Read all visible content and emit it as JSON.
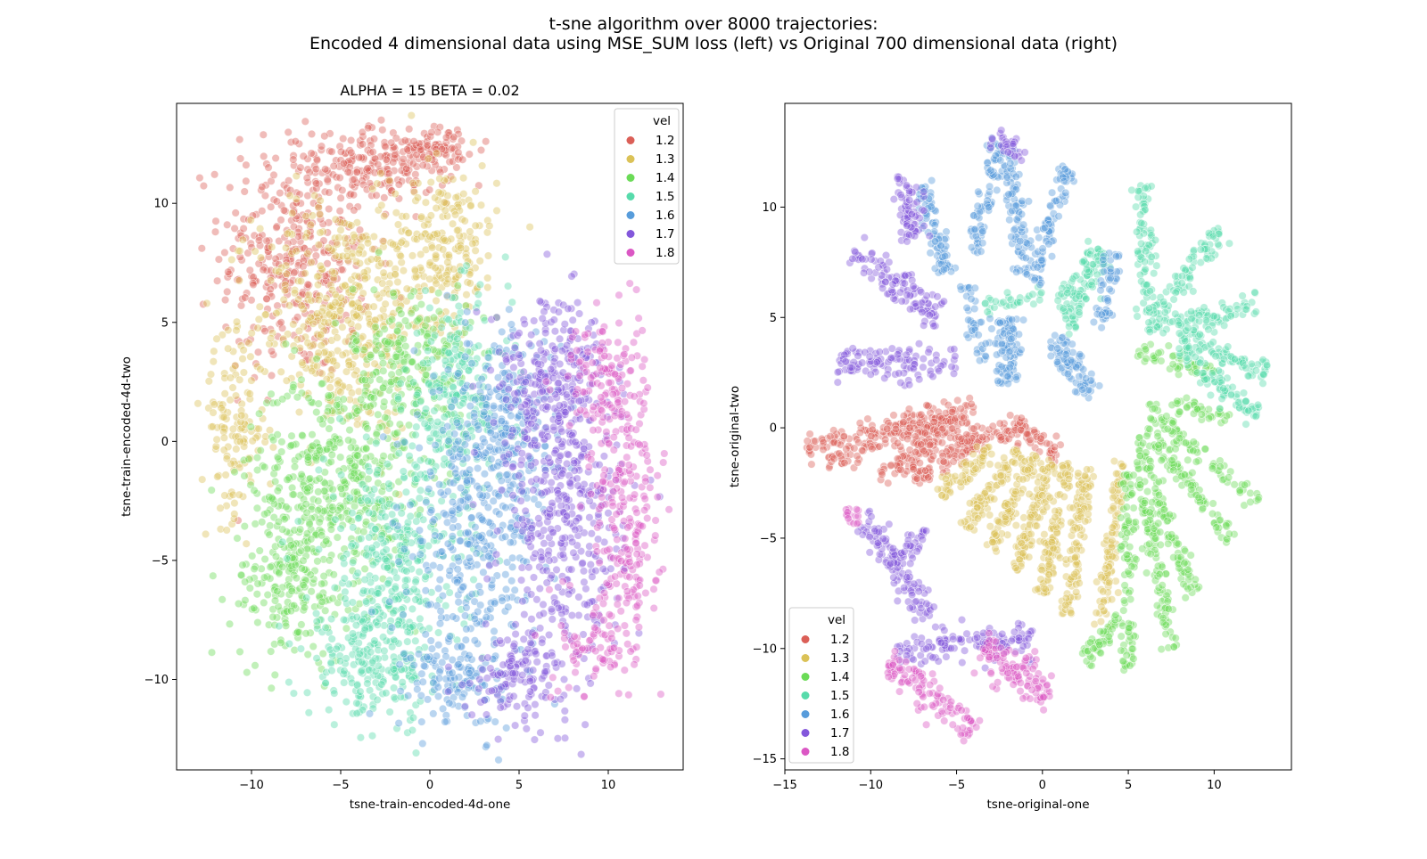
{
  "figure": {
    "title_line1": "t-sne algorithm over 8000 trajectories:",
    "title_line2": "Encoded 4 dimensional data using MSE_SUM loss (left) vs Original 700 dimensional data (right)"
  },
  "colors": {
    "1.2": "#db5f57",
    "1.3": "#dbc257",
    "1.4": "#6bdb57",
    "1.5": "#57dbab",
    "1.6": "#579cdb",
    "1.7": "#8357db",
    "1.8": "#db57c4"
  },
  "chart_data": [
    {
      "type": "scatter",
      "title": "ALPHA = 15  BETA = 0.02",
      "xlabel": "tsne-train-encoded-4d-one",
      "ylabel": "tsne-train-encoded-4d-two",
      "xlim": [
        -14.2,
        14.2
      ],
      "ylim": [
        -13.8,
        14.2
      ],
      "xticks": [
        -10,
        -5,
        0,
        5,
        10
      ],
      "yticks": [
        -10,
        -5,
        0,
        5,
        10
      ],
      "xtick_labels": [
        "−10",
        "−5",
        "0",
        "5",
        "10"
      ],
      "ytick_labels": [
        "−10",
        "−5",
        "0",
        "5",
        "10"
      ],
      "legend": {
        "title": "vel",
        "placement": "upper right",
        "entries": [
          "1.2",
          "1.3",
          "1.4",
          "1.5",
          "1.6",
          "1.7",
          "1.8"
        ]
      },
      "grid": false,
      "point_alpha": 0.42,
      "series": [
        {
          "name": "1.2",
          "clusters": [
            {
              "cx": -7.5,
              "cy": 8.0,
              "sx": 2.8,
              "sy": 3.6,
              "n": 380
            },
            {
              "cx": -2.5,
              "cy": 11.6,
              "sx": 2.5,
              "sy": 1.0,
              "n": 180
            },
            {
              "cx": 0.4,
              "cy": 12.3,
              "sx": 1.1,
              "sy": 0.6,
              "n": 70
            }
          ]
        },
        {
          "name": "1.3",
          "clusters": [
            {
              "cx": -5.0,
              "cy": 5.2,
              "sx": 3.2,
              "sy": 3.3,
              "n": 440
            },
            {
              "cx": 0.8,
              "cy": 8.3,
              "sx": 2.0,
              "sy": 2.2,
              "n": 220
            },
            {
              "cx": -11.0,
              "cy": 0.5,
              "sx": 1.2,
              "sy": 2.4,
              "n": 120
            }
          ]
        },
        {
          "name": "1.4",
          "clusters": [
            {
              "cx": -5.5,
              "cy": -1.5,
              "sx": 3.0,
              "sy": 3.0,
              "n": 420
            },
            {
              "cx": -1.0,
              "cy": 3.2,
              "sx": 2.2,
              "sy": 2.3,
              "n": 220
            },
            {
              "cx": -7.8,
              "cy": -6.0,
              "sx": 2.2,
              "sy": 2.2,
              "n": 200
            }
          ]
        },
        {
          "name": "1.5",
          "clusters": [
            {
              "cx": -2.0,
              "cy": -5.5,
              "sx": 2.6,
              "sy": 3.6,
              "n": 380
            },
            {
              "cx": 1.5,
              "cy": 1.8,
              "sx": 2.0,
              "sy": 2.8,
              "n": 230
            },
            {
              "cx": -3.5,
              "cy": -9.5,
              "sx": 2.2,
              "sy": 1.4,
              "n": 150
            }
          ]
        },
        {
          "name": "1.6",
          "clusters": [
            {
              "cx": 2.5,
              "cy": -4.0,
              "sx": 2.3,
              "sy": 4.5,
              "n": 380
            },
            {
              "cx": 4.5,
              "cy": 1.0,
              "sx": 1.8,
              "sy": 2.5,
              "n": 190
            },
            {
              "cx": 1.5,
              "cy": -10.0,
              "sx": 1.8,
              "sy": 1.3,
              "n": 110
            }
          ]
        },
        {
          "name": "1.7",
          "clusters": [
            {
              "cx": 7.5,
              "cy": -3.5,
              "sx": 2.2,
              "sy": 4.5,
              "n": 420
            },
            {
              "cx": 6.8,
              "cy": 2.8,
              "sx": 2.2,
              "sy": 2.2,
              "n": 220
            },
            {
              "cx": 5.0,
              "cy": -9.8,
              "sx": 1.8,
              "sy": 1.3,
              "n": 120
            }
          ]
        },
        {
          "name": "1.8",
          "clusters": [
            {
              "cx": 11.0,
              "cy": -3.5,
              "sx": 1.3,
              "sy": 3.5,
              "n": 200
            },
            {
              "cx": 9.8,
              "cy": 2.5,
              "sx": 1.4,
              "sy": 2.0,
              "n": 140
            },
            {
              "cx": 9.5,
              "cy": -8.5,
              "sx": 1.5,
              "sy": 1.5,
              "n": 80
            }
          ]
        }
      ]
    },
    {
      "type": "scatter",
      "title": "",
      "xlabel": "tsne-original-one",
      "ylabel": "tsne-original-two",
      "xlim": [
        -15.0,
        14.5
      ],
      "ylim": [
        -15.5,
        14.7
      ],
      "xticks": [
        -15,
        -10,
        -5,
        0,
        5,
        10
      ],
      "yticks": [
        -15,
        -10,
        -5,
        0,
        5,
        10
      ],
      "xtick_labels": [
        "−15",
        "−10",
        "−5",
        "0",
        "5",
        "10"
      ],
      "ytick_labels": [
        "−15",
        "−10",
        "−5",
        "0",
        "5",
        "10"
      ],
      "legend": {
        "title": "vel",
        "placement": "lower left",
        "entries": [
          "1.2",
          "1.3",
          "1.4",
          "1.5",
          "1.6",
          "1.7",
          "1.8"
        ]
      },
      "grid": false,
      "point_alpha": 0.42,
      "series": [
        {
          "name": "1.2",
          "strands": [
            {
              "x0": -13.8,
              "y0": -0.8,
              "x1": -4.0,
              "y1": 1.0,
              "w": 0.35,
              "n": 120
            },
            {
              "x0": -12.5,
              "y0": -1.5,
              "x1": -5.0,
              "y1": 0.5,
              "w": 0.35,
              "n": 110
            },
            {
              "x0": -9.5,
              "y0": -2.3,
              "x1": -4.5,
              "y1": 0.5,
              "w": 0.35,
              "n": 90
            },
            {
              "x0": -7.5,
              "y0": -2.3,
              "x1": -3.5,
              "y1": -0.5,
              "w": 0.35,
              "n": 80
            },
            {
              "x0": -5.0,
              "y0": -0.8,
              "x1": -1.0,
              "y1": 0.1,
              "w": 0.35,
              "n": 60
            },
            {
              "x0": -1.5,
              "y0": 0.1,
              "x1": 1.0,
              "y1": -1.3,
              "w": 0.3,
              "n": 50
            }
          ]
        },
        {
          "name": "1.3",
          "strands": [
            {
              "x0": -6.0,
              "y0": -3.0,
              "x1": -3.0,
              "y1": -1.0,
              "w": 0.3,
              "n": 60
            },
            {
              "x0": -4.5,
              "y0": -4.5,
              "x1": -1.5,
              "y1": -1.0,
              "w": 0.3,
              "n": 80
            },
            {
              "x0": -3.0,
              "y0": -5.5,
              "x1": -0.5,
              "y1": -1.2,
              "w": 0.3,
              "n": 90
            },
            {
              "x0": -1.5,
              "y0": -6.5,
              "x1": 0.5,
              "y1": -1.5,
              "w": 0.3,
              "n": 100
            },
            {
              "x0": 0.0,
              "y0": -7.5,
              "x1": 1.5,
              "y1": -1.6,
              "w": 0.3,
              "n": 110
            },
            {
              "x0": 1.5,
              "y0": -8.5,
              "x1": 2.5,
              "y1": -1.8,
              "w": 0.3,
              "n": 110
            },
            {
              "x0": 3.5,
              "y0": -9.0,
              "x1": 4.5,
              "y1": -1.5,
              "w": 0.3,
              "n": 100
            }
          ]
        },
        {
          "name": "1.4",
          "strands": [
            {
              "x0": 2.5,
              "y0": -10.5,
              "x1": 4.5,
              "y1": -8.5,
              "w": 0.3,
              "n": 50
            },
            {
              "x0": 5.0,
              "y0": -11.0,
              "x1": 5.0,
              "y1": -2.0,
              "w": 0.3,
              "n": 100
            },
            {
              "x0": 7.5,
              "y0": -10.0,
              "x1": 5.5,
              "y1": -1.5,
              "w": 0.3,
              "n": 110
            },
            {
              "x0": 9.0,
              "y0": -8.0,
              "x1": 5.5,
              "y1": -0.5,
              "w": 0.3,
              "n": 100
            },
            {
              "x0": 11.0,
              "y0": -5.0,
              "x1": 6.0,
              "y1": 0.0,
              "w": 0.3,
              "n": 90
            },
            {
              "x0": 12.5,
              "y0": -3.5,
              "x1": 6.0,
              "y1": 1.0,
              "w": 0.3,
              "n": 80
            },
            {
              "x0": 10.0,
              "y0": 2.5,
              "x1": 5.5,
              "y1": 3.5,
              "w": 0.3,
              "n": 50
            },
            {
              "x0": 11.0,
              "y0": 0.5,
              "x1": 7.5,
              "y1": 1.0,
              "w": 0.3,
              "n": 40
            }
          ]
        },
        {
          "name": "1.5",
          "strands": [
            {
              "x0": 12.5,
              "y0": 0.5,
              "x1": 8.0,
              "y1": 3.5,
              "w": 0.35,
              "n": 80
            },
            {
              "x0": 13.0,
              "y0": 2.5,
              "x1": 8.0,
              "y1": 4.0,
              "w": 0.35,
              "n": 80
            },
            {
              "x0": 12.5,
              "y0": 5.5,
              "x1": 6.5,
              "y1": 4.5,
              "w": 0.35,
              "n": 80
            },
            {
              "x0": 10.5,
              "y0": 9.0,
              "x1": 6.0,
              "y1": 4.5,
              "w": 0.35,
              "n": 90
            },
            {
              "x0": 6.0,
              "y0": 11.0,
              "x1": 6.0,
              "y1": 5.0,
              "w": 0.35,
              "n": 80
            },
            {
              "x0": 3.5,
              "y0": 8.0,
              "x1": 1.5,
              "y1": 5.5,
              "w": 0.5,
              "n": 90
            },
            {
              "x0": 0.0,
              "y0": 6.0,
              "x1": -3.5,
              "y1": 5.5,
              "w": 0.25,
              "n": 30
            },
            {
              "x0": 2.0,
              "y0": 4.5,
              "x1": 1.0,
              "y1": 6.0,
              "w": 0.25,
              "n": 25
            }
          ]
        },
        {
          "name": "1.6",
          "strands": [
            {
              "x0": -2.5,
              "y0": 13.0,
              "x1": -4.0,
              "y1": 8.0,
              "w": 0.35,
              "n": 80
            },
            {
              "x0": -2.0,
              "y0": 12.5,
              "x1": -1.0,
              "y1": 7.0,
              "w": 0.35,
              "n": 90
            },
            {
              "x0": 1.5,
              "y0": 11.8,
              "x1": -0.5,
              "y1": 6.5,
              "w": 0.35,
              "n": 90
            },
            {
              "x0": -7.0,
              "y0": 11.0,
              "x1": -5.5,
              "y1": 7.0,
              "w": 0.35,
              "n": 80
            },
            {
              "x0": -4.5,
              "y0": 6.5,
              "x1": -3.5,
              "y1": 3.0,
              "w": 0.3,
              "n": 40
            },
            {
              "x0": -2.0,
              "y0": 5.0,
              "x1": -2.0,
              "y1": 2.0,
              "w": 0.5,
              "n": 90
            },
            {
              "x0": 0.5,
              "y0": 4.0,
              "x1": 3.0,
              "y1": 1.5,
              "w": 0.4,
              "n": 80
            },
            {
              "x0": 4.0,
              "y0": 8.0,
              "x1": 3.5,
              "y1": 4.5,
              "w": 0.3,
              "n": 50
            }
          ]
        },
        {
          "name": "1.7",
          "strands": [
            {
              "x0": -8.0,
              "y0": 11.5,
              "x1": -7.5,
              "y1": 8.5,
              "w": 0.45,
              "n": 70
            },
            {
              "x0": -11.0,
              "y0": 8.0,
              "x1": -6.0,
              "y1": 5.0,
              "w": 0.5,
              "n": 110
            },
            {
              "x0": -12.0,
              "y0": 3.0,
              "x1": -5.0,
              "y1": 2.8,
              "w": 0.5,
              "n": 110
            },
            {
              "x0": -10.5,
              "y0": -4.0,
              "x1": -6.5,
              "y1": -8.5,
              "w": 0.5,
              "n": 110
            },
            {
              "x0": -8.0,
              "y0": -6.0,
              "x1": -7.0,
              "y1": -4.5,
              "w": 0.3,
              "n": 30
            },
            {
              "x0": -8.5,
              "y0": -10.0,
              "x1": -0.5,
              "y1": -9.5,
              "w": 0.5,
              "n": 130
            },
            {
              "x0": -3.0,
              "y0": 13.0,
              "x1": -1.0,
              "y1": 12.5,
              "w": 0.3,
              "n": 30
            }
          ]
        },
        {
          "name": "1.8",
          "strands": [
            {
              "x0": -11.5,
              "y0": -3.8,
              "x1": -10.5,
              "y1": -4.0,
              "w": 0.25,
              "n": 15
            },
            {
              "x0": -9.0,
              "y0": -10.5,
              "x1": -4.0,
              "y1": -13.8,
              "w": 0.5,
              "n": 110
            },
            {
              "x0": -3.5,
              "y0": -10.0,
              "x1": 0.5,
              "y1": -12.0,
              "w": 0.55,
              "n": 110
            }
          ]
        }
      ]
    }
  ]
}
